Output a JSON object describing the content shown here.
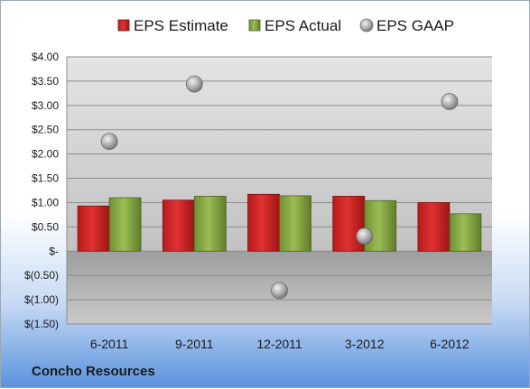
{
  "company_label": "Concho Resources",
  "chart_data": {
    "type": "bar",
    "categories": [
      "6-2011",
      "9-2011",
      "12-2011",
      "3-2012",
      "6-2012"
    ],
    "series": [
      {
        "name": "EPS Estimate",
        "kind": "bar",
        "color": "#d42a2a",
        "values": [
          0.93,
          1.05,
          1.17,
          1.13,
          1.0
        ]
      },
      {
        "name": "EPS Actual",
        "kind": "bar",
        "color": "#8aab45",
        "values": [
          1.1,
          1.13,
          1.14,
          1.04,
          0.77
        ]
      },
      {
        "name": "EPS GAAP",
        "kind": "marker",
        "color": "#a6a6a6",
        "values": [
          2.26,
          3.44,
          -0.81,
          0.31,
          3.08
        ]
      }
    ],
    "yticks": [
      "$(1.50)",
      "$(1.00)",
      "$(0.50)",
      "$-",
      "$0.50",
      "$1.00",
      "$1.50",
      "$2.00",
      "$2.50",
      "$3.00",
      "$3.50",
      "$4.00"
    ],
    "ylim": [
      -1.5,
      4.0
    ],
    "legend_position": "top",
    "grid": true,
    "title": "",
    "xlabel": "",
    "ylabel": ""
  }
}
